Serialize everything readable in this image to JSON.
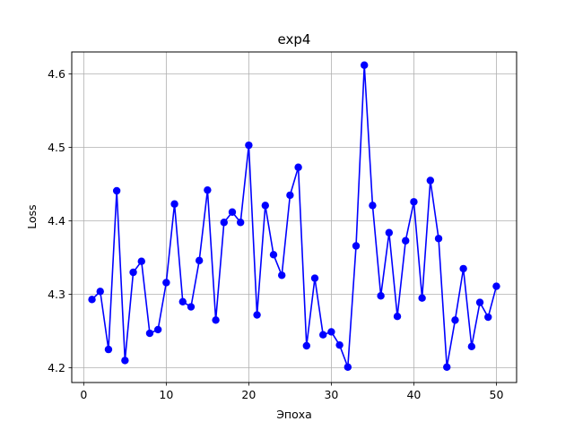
{
  "chart_data": {
    "type": "line",
    "title": "exp4",
    "xlabel": "Эпоха",
    "ylabel": "Loss",
    "xlim": [
      -1.45,
      52.45
    ],
    "ylim": [
      4.18,
      4.63
    ],
    "xticks": [
      0,
      10,
      20,
      30,
      40,
      50
    ],
    "yticks": [
      4.2,
      4.3,
      4.4,
      4.5,
      4.6
    ],
    "xtick_labels": [
      "0",
      "10",
      "20",
      "30",
      "40",
      "50"
    ],
    "ytick_labels": [
      "4.2",
      "4.3",
      "4.4",
      "4.5",
      "4.6"
    ],
    "grid": true,
    "series": [
      {
        "color": "#0000ff",
        "marker": "circle",
        "x": [
          1,
          2,
          3,
          4,
          5,
          6,
          7,
          8,
          9,
          10,
          11,
          12,
          13,
          14,
          15,
          16,
          17,
          18,
          19,
          20,
          21,
          22,
          23,
          24,
          25,
          26,
          27,
          28,
          29,
          30,
          31,
          32,
          33,
          34,
          35,
          36,
          37,
          38,
          39,
          40,
          41,
          42,
          43,
          44,
          45,
          46,
          47,
          48,
          49,
          50
        ],
        "y": [
          4.293,
          4.304,
          4.225,
          4.441,
          4.21,
          4.33,
          4.345,
          4.247,
          4.252,
          4.316,
          4.423,
          4.29,
          4.283,
          4.346,
          4.442,
          4.265,
          4.398,
          4.412,
          4.398,
          4.503,
          4.272,
          4.421,
          4.354,
          4.326,
          4.435,
          4.473,
          4.23,
          4.322,
          4.245,
          4.249,
          4.231,
          4.201,
          4.366,
          4.612,
          4.421,
          4.298,
          4.384,
          4.27,
          4.373,
          4.426,
          4.295,
          4.455,
          4.376,
          4.201,
          4.265,
          4.335,
          4.229,
          4.289,
          4.269,
          4.311
        ]
      }
    ]
  }
}
